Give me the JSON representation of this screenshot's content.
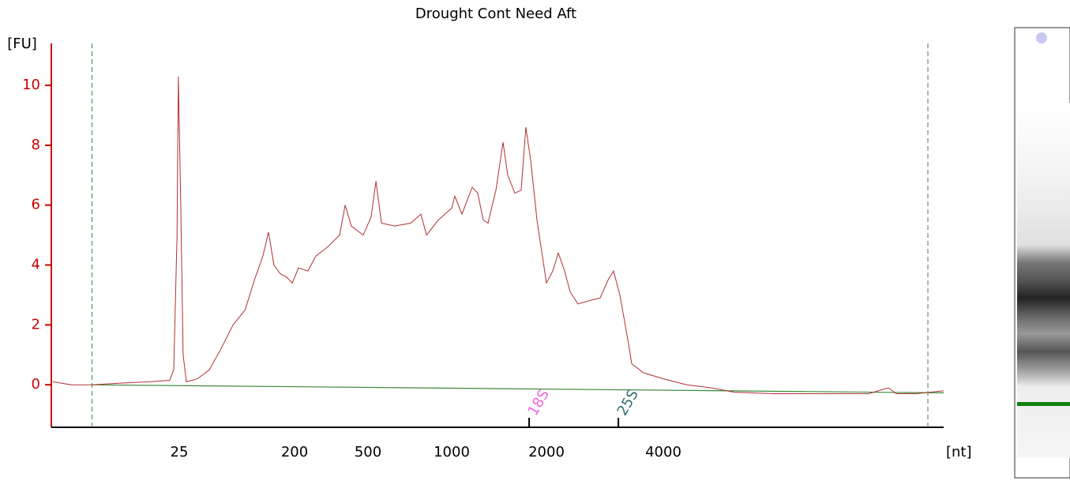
{
  "chart_data": {
    "type": "line",
    "title": "Drought Cont Need Aft",
    "y_label": "[FU]",
    "x_label": "[nt]",
    "axis_color": "#cc0000",
    "xlim": [
      2.5,
      21000
    ],
    "xticks": [
      25,
      200,
      500,
      1000,
      2000,
      4000
    ],
    "ylim": [
      -1.42,
      11.4
    ],
    "yticks": [
      0,
      2,
      4,
      6,
      8,
      10
    ],
    "series": [
      {
        "color": "#b03030",
        "x": [
          2.5,
          3.5,
          5.1,
          8.3,
          14.7,
          21,
          22.6,
          24,
          24.6,
          25.7,
          26.8,
          28.4,
          34.7,
          43,
          53,
          66,
          82,
          97,
          113,
          125,
          138,
          155,
          173,
          192,
          210,
          236,
          261,
          302,
          351,
          376,
          406,
          471,
          513,
          534,
          559,
          624,
          712,
          775,
          812,
          894,
          1000,
          1023,
          1078,
          1162,
          1210,
          1260,
          1304,
          1382,
          1456,
          1507,
          1587,
          1662,
          1720,
          1782,
          1866,
          2000,
          2076,
          2146,
          2227,
          2302,
          2411,
          2565,
          2750,
          2882,
          2977,
          3091,
          3241,
          3317,
          3558,
          4000,
          4601,
          5293,
          6090,
          7692,
          10668,
          13470,
          15144,
          15867,
          17832,
          21000
        ],
        "values": [
          0.1,
          0.0,
          0.0,
          0.05,
          0.1,
          0.15,
          0.5,
          5,
          10.3,
          6,
          1,
          0.1,
          0.2,
          0.5,
          1.2,
          2,
          2.5,
          3.5,
          4.3,
          5.1,
          4.0,
          3.7,
          3.6,
          3.4,
          3.9,
          3.8,
          4.3,
          4.6,
          5.0,
          6.0,
          5.3,
          5.0,
          5.6,
          6.8,
          5.4,
          5.3,
          5.4,
          5.7,
          5.0,
          5.5,
          5.9,
          6.3,
          5.7,
          6.6,
          6.4,
          5.5,
          5.4,
          6.5,
          8.1,
          7.0,
          6.4,
          6.5,
          8.6,
          7.5,
          5.5,
          3.4,
          3.8,
          4.4,
          3.8,
          3.1,
          2.7,
          2.8,
          2.9,
          3.5,
          3.8,
          3.0,
          1.5,
          0.7,
          0.4,
          0.2,
          0.0,
          -0.1,
          -0.25,
          -0.3,
          -0.3,
          -0.3,
          -0.1,
          -0.3,
          -0.3,
          -0.2
        ]
      }
    ],
    "baseline": {
      "color": "#3a8a3a",
      "x": [
        5.1,
        21000
      ],
      "values": [
        0,
        -0.27
      ]
    },
    "window": {
      "color": "#3a8a3a",
      "x": [
        5.1,
        19130
      ]
    },
    "peaks": [
      {
        "label": "18S",
        "x": 1762,
        "color": "#ee66dd",
        "line_x": [
          1587,
          2000
        ],
        "line_y": [
          6.1,
          3.5
        ]
      },
      {
        "label": "25S",
        "x": 3064,
        "color": "#2e7070",
        "line_x": [
          2750,
          3317
        ],
        "line_y": [
          2.9,
          0.8
        ]
      }
    ]
  }
}
